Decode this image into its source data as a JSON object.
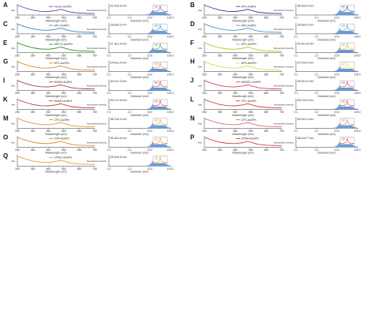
{
  "abs_axis": {
    "ylabel": "Abs",
    "xlabel": "Wavelength (nm)",
    "xticks": [
      "250",
      "350",
      "450",
      "550",
      "650",
      "750"
    ],
    "xlim": [
      250,
      750
    ]
  },
  "dls_axis": {
    "ylabel": "Normalized intensity",
    "xlabel": "Diameter (nm)",
    "xticks": [
      "0.1",
      "1.0",
      "10.0",
      "100.0"
    ]
  },
  "panels": [
    {
      "letter": "A",
      "name": "Irecne-AuNPs",
      "size": "32.0±0.5 nm",
      "color": "#7b3f9e"
    },
    {
      "letter": "B",
      "name": "AP1-AuNPs",
      "size": "36.0±0.9 nm",
      "color": "#2f3d9c"
    },
    {
      "letter": "C",
      "name": "AP2-AuNPs",
      "size": "25.0±0.3 nm",
      "color": "#2f86c8"
    },
    {
      "letter": "D",
      "name": "AP3-AuNPs",
      "size": "28.6±0.3 nm",
      "color": "#3a9bd5"
    },
    {
      "letter": "E",
      "name": "AtPCO-AuNPs",
      "size": "37.3±1.0 nm",
      "color": "#3a8f3a"
    },
    {
      "letter": "F",
      "name": "NP1-AuNPs",
      "size": "30.4±1.8 nm",
      "color": "#c9c02a"
    },
    {
      "letter": "G",
      "name": "NP2-AuNPs",
      "size": "24.0±1.0 nm",
      "color": "#e08a2a"
    },
    {
      "letter": "H",
      "name": "NP3-AuNPs",
      "size": "24.7±0.4 nm",
      "color": "#e6d64a"
    },
    {
      "letter": "I",
      "name": "MUM4-AuNPs",
      "size": "40.1±1.3 nm",
      "color": "#b23a3a"
    },
    {
      "letter": "J",
      "name": "MMSE1-AuNPs",
      "size": "39.2±1.0 nm",
      "color": "#d9414a"
    },
    {
      "letter": "K",
      "name": "MUM2-AuNPs",
      "size": "40.1±1.6 nm",
      "color": "#c43a3a"
    },
    {
      "letter": "L",
      "name": "CP1-AuNPs",
      "size": "43.7±0.4 nm",
      "color": "#d63a3a"
    },
    {
      "letter": "M",
      "name": "CP2-AuNPs",
      "size": "36.7±0.4 nm",
      "color": "#e0962a"
    },
    {
      "letter": "N",
      "name": "CP3-AuNPs",
      "size": "40.0±1.4 nm",
      "color": "#e36a6a"
    },
    {
      "letter": "O",
      "name": "CP4-AuNPs",
      "size": "32.4±1.6 nm",
      "color": "#e08a2a"
    },
    {
      "letter": "P",
      "name": "CP5M-AuNPs",
      "size": "48.1±0.7 nm",
      "color": "#d9414a"
    },
    {
      "letter": "Q",
      "name": "CPNO-AuNPs",
      "size": "25.0±0.6 nm",
      "color": "#e6a030"
    }
  ],
  "chart_data": {
    "type": "line",
    "description_panels": 17,
    "uv_vis": {
      "x": [
        250,
        300,
        350,
        400,
        450,
        500,
        530,
        560,
        600,
        650,
        700,
        750
      ],
      "y_normalized": [
        1.0,
        0.72,
        0.5,
        0.38,
        0.36,
        0.46,
        0.58,
        0.45,
        0.28,
        0.2,
        0.17,
        0.15
      ]
    },
    "dls_histogram": {
      "bins": [
        8,
        10,
        12,
        14,
        16,
        19,
        22,
        26,
        31,
        37,
        44,
        52,
        62,
        74,
        88,
        105
      ],
      "values": [
        0.05,
        0.12,
        0.28,
        0.48,
        0.68,
        0.88,
        1.0,
        0.95,
        0.82,
        0.65,
        0.45,
        0.3,
        0.18,
        0.1,
        0.05,
        0.02
      ]
    }
  }
}
